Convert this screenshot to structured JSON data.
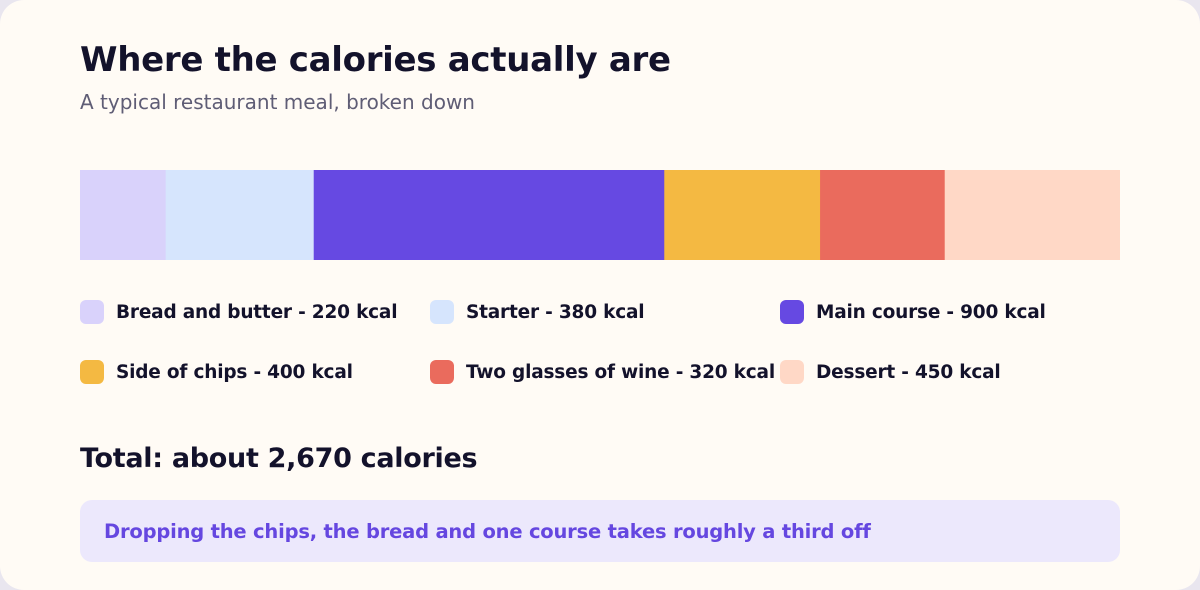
{
  "card": {
    "title": "Where the calories actually are",
    "subtitle": "A typical restaurant meal, broken down",
    "total": "Total: about 2,670 calories",
    "callout": "Dropping the chips, the bread and one course takes roughly a third off"
  },
  "chart_data": {
    "type": "bar",
    "orientation": "horizontal-stacked",
    "title": "Where the calories actually are",
    "subtitle": "A typical restaurant meal, broken down",
    "unit": "kcal",
    "categories": [
      "Bread and butter",
      "Starter",
      "Main course",
      "Side of chips",
      "Two glasses of wine",
      "Dessert"
    ],
    "values": [
      220,
      380,
      900,
      400,
      320,
      450
    ],
    "colors": [
      "#d9d2fb",
      "#d6e5fd",
      "#6649e2",
      "#f4b942",
      "#ea6b5d",
      "#ffd8c6"
    ],
    "legend_labels": [
      "Bread and butter - 220 kcal",
      "Starter - 380 kcal",
      "Main course - 900 kcal",
      "Side of chips - 400 kcal",
      "Two glasses of wine - 320 kcal",
      "Dessert - 450 kcal"
    ],
    "legend_placement": "bottom",
    "grid": false
  }
}
